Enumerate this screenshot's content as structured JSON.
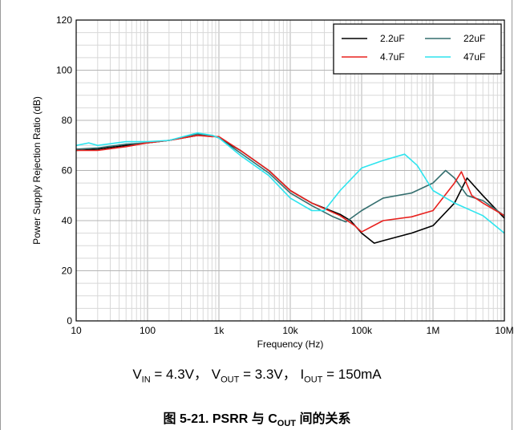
{
  "chart_data": {
    "type": "line",
    "xlabel": "Frequency (Hz)",
    "ylabel": "Power Supply Rejection Ratio (dB)",
    "xscale": "log",
    "xlim": [
      10,
      10000000
    ],
    "ylim": [
      0,
      120
    ],
    "xticks": [
      10,
      100,
      1000,
      10000,
      100000,
      1000000,
      10000000
    ],
    "xticklabels": [
      "10",
      "100",
      "1k",
      "10k",
      "100k",
      "1M",
      "10M"
    ],
    "yticks": [
      0,
      20,
      40,
      60,
      80,
      100,
      120
    ],
    "yticklabels": [
      "0",
      "20",
      "40",
      "60",
      "80",
      "100",
      "120"
    ],
    "grid": true,
    "legend_position": "top-right",
    "series": [
      {
        "name": "2.2uF",
        "color": "#000000",
        "x": [
          10,
          20,
          50,
          100,
          200,
          500,
          800,
          1000,
          2000,
          5000,
          10000,
          20000,
          50000,
          70000,
          100000,
          150000,
          200000,
          500000,
          1000000,
          2000000,
          3000000,
          5000000,
          10000000
        ],
        "y": [
          68,
          68.5,
          70,
          71,
          72,
          74,
          74,
          73,
          68,
          60,
          52,
          47,
          42.5,
          40,
          35,
          31,
          32,
          35,
          38,
          47,
          57,
          50,
          41
        ]
      },
      {
        "name": "22uF",
        "color": "#356f6f",
        "x": [
          10,
          20,
          50,
          100,
          200,
          500,
          800,
          1000,
          2000,
          5000,
          10000,
          20000,
          40000,
          60000,
          100000,
          200000,
          500000,
          1000000,
          1500000,
          2000000,
          3000000,
          5000000,
          10000000
        ],
        "y": [
          68.5,
          69,
          70.5,
          71,
          72,
          74.5,
          74,
          73,
          67,
          59,
          51,
          46,
          41.5,
          39.5,
          44,
          49,
          51,
          55,
          60,
          57,
          50,
          48,
          42
        ]
      },
      {
        "name": "4.7uF",
        "color": "#e8221f",
        "x": [
          10,
          20,
          50,
          100,
          200,
          500,
          800,
          1000,
          2000,
          5000,
          10000,
          20000,
          50000,
          80000,
          100000,
          200000,
          500000,
          1000000,
          2000000,
          2500000,
          3500000,
          5000000,
          10000000
        ],
        "y": [
          68,
          68,
          69.5,
          71,
          72,
          74,
          73.5,
          73.5,
          68,
          60,
          52,
          47,
          42,
          38,
          35.5,
          40,
          41.5,
          44,
          55,
          59.5,
          50,
          47,
          42
        ]
      },
      {
        "name": "47uF",
        "color": "#2ee4ee",
        "x": [
          10,
          15,
          20,
          50,
          100,
          200,
          500,
          800,
          1000,
          2000,
          5000,
          10000,
          20000,
          30000,
          50000,
          100000,
          200000,
          400000,
          600000,
          1000000,
          2000000,
          5000000,
          10000000
        ],
        "y": [
          70,
          71,
          70,
          71.5,
          71.5,
          72,
          75,
          74,
          73,
          66,
          58,
          49,
          44,
          44,
          52,
          61,
          64,
          66.5,
          62,
          52,
          47,
          42,
          35
        ]
      }
    ]
  },
  "condition": {
    "v_in_symbol": "V",
    "v_in_sub": "IN",
    "v_in_value": " = 4.3V，",
    "v_out_symbol": "V",
    "v_out_sub": "OUT",
    "v_out_value": " = 3.3V，",
    "i_out_symbol": "I",
    "i_out_sub": "OUT",
    "i_out_value": " = 150mA"
  },
  "caption": {
    "prefix": "图 5-21. PSRR 与 ",
    "c_symbol": "C",
    "c_sub": "OUT",
    "suffix": " 间的关系"
  }
}
